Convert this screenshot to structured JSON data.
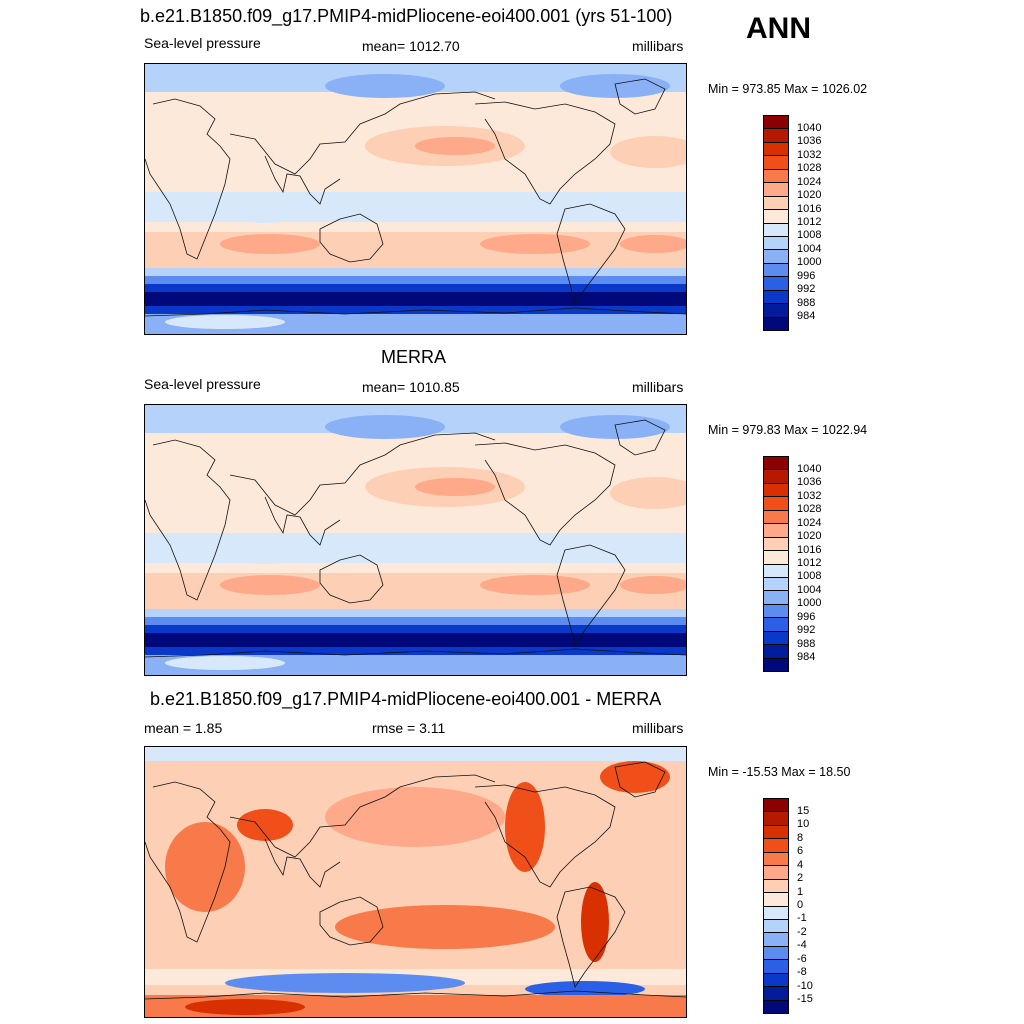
{
  "season_label": "ANN",
  "panels": [
    {
      "title": "b.e21.B1850.f09_g17.PMIP4-midPliocene-eoi400.001 (yrs 51-100)",
      "left_label": "Sea-level pressure",
      "center_label": "mean= 1012.70",
      "right_label": "millibars",
      "minmax": "Min = 973.85 Max = 1026.02",
      "kind": "field",
      "colorbar": {
        "labels": [
          "1040",
          "1036",
          "1032",
          "1028",
          "1024",
          "1020",
          "1016",
          "1012",
          "1008",
          "1004",
          "1000",
          "996",
          "992",
          "988",
          "984"
        ],
        "colors": [
          "#8b0000",
          "#b51a00",
          "#d83000",
          "#f04f1a",
          "#f87a4a",
          "#fda98a",
          "#fdd0b5",
          "#fde9da",
          "#d8e8fb",
          "#b5d2fa",
          "#8ab1f5",
          "#5c8cf0",
          "#2a5fe6",
          "#0a38c8",
          "#031c9c",
          "#00087a"
        ]
      }
    },
    {
      "title": "MERRA",
      "left_label": "Sea-level pressure",
      "center_label": "mean= 1010.85",
      "right_label": "millibars",
      "minmax": "Min = 979.83 Max = 1022.94",
      "kind": "field",
      "colorbar": {
        "labels": [
          "1040",
          "1036",
          "1032",
          "1028",
          "1024",
          "1020",
          "1016",
          "1012",
          "1008",
          "1004",
          "1000",
          "996",
          "992",
          "988",
          "984"
        ],
        "colors": [
          "#8b0000",
          "#b51a00",
          "#d83000",
          "#f04f1a",
          "#f87a4a",
          "#fda98a",
          "#fdd0b5",
          "#fde9da",
          "#d8e8fb",
          "#b5d2fa",
          "#8ab1f5",
          "#5c8cf0",
          "#2a5fe6",
          "#0a38c8",
          "#031c9c",
          "#00087a"
        ]
      }
    },
    {
      "title": "b.e21.B1850.f09_g17.PMIP4-midPliocene-eoi400.001 - MERRA",
      "left_label": "mean =   1.85",
      "center_label": "rmse =   3.11",
      "right_label": "millibars",
      "minmax": "Min = -15.53 Max =  18.50",
      "kind": "diff",
      "colorbar": {
        "labels": [
          "15",
          "10",
          "8",
          "6",
          "4",
          "2",
          "1",
          "0",
          "-1",
          "-2",
          "-4",
          "-6",
          "-8",
          "-10",
          "-15"
        ],
        "colors": [
          "#8b0000",
          "#b51a00",
          "#d83000",
          "#f04f1a",
          "#f87a4a",
          "#fda98a",
          "#fdd0b5",
          "#fde9da",
          "#d8e8fb",
          "#b5d2fa",
          "#8ab1f5",
          "#5c8cf0",
          "#2a5fe6",
          "#0a38c8",
          "#031c9c",
          "#00087a"
        ]
      }
    }
  ]
}
